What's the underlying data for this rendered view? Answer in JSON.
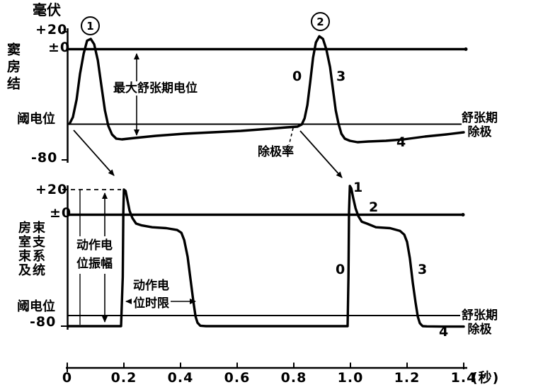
{
  "figure": {
    "y_unit": "毫伏",
    "x_unit": "(秒)",
    "x_ticks": [
      "0",
      "0.2",
      "0.4",
      "0.6",
      "0.8",
      "1.0",
      "1.2",
      "1.4"
    ]
  },
  "top_panel": {
    "trace_name": "窦房结",
    "y_plus20": "+20",
    "y_zero": "±0",
    "y_minus80": "-80",
    "threshold_label": "阈电位",
    "ap1_number": "1",
    "ap2_number": "2",
    "max_diastolic_label": "最大舒张期电位",
    "depol_rate_label": "除极率",
    "phase_0": "0",
    "phase_3": "3",
    "phase_4": "4",
    "diastolic_line1": "舒张期",
    "diastolic_line2": "除极"
  },
  "bottom_panel": {
    "trace_name_col1": "房室束及",
    "trace_name_col2": "束支系统",
    "y_plus20": "+20",
    "y_zero": "±0",
    "y_minus80": "-80",
    "threshold_label": "阈电位",
    "amplitude_line1": "动作电",
    "amplitude_line2": "位振幅",
    "duration_line1": "动作电",
    "duration_line2": "位时限",
    "phase_0": "0",
    "phase_1": "1",
    "phase_2": "2",
    "phase_3": "3",
    "phase_4": "4",
    "diastolic_line1": "舒张期",
    "diastolic_line2": "除极"
  },
  "chart_data": {
    "type": "line",
    "xlabel": "(秒)",
    "ylabel": "毫伏",
    "x_range": [
      0,
      1.4
    ],
    "y_tick_labels_mV": [
      20,
      0,
      -80
    ],
    "threshold_mV_approx": -55,
    "legend_position": "none",
    "grid": false,
    "series": [
      {
        "name": "窦房结",
        "points": [
          [
            0.008,
            -55
          ],
          [
            0.02,
            -50
          ],
          [
            0.033,
            -37
          ],
          [
            0.045,
            -18
          ],
          [
            0.058,
            -3
          ],
          [
            0.07,
            10
          ],
          [
            0.083,
            12
          ],
          [
            0.095,
            6
          ],
          [
            0.108,
            -8
          ],
          [
            0.12,
            -26
          ],
          [
            0.133,
            -45
          ],
          [
            0.145,
            -56.5
          ],
          [
            0.158,
            -62.5
          ],
          [
            0.173,
            -65.5
          ],
          [
            0.193,
            -66
          ],
          [
            0.238,
            -65
          ],
          [
            0.313,
            -63.5
          ],
          [
            0.413,
            -62
          ],
          [
            0.513,
            -61
          ],
          [
            0.613,
            -60
          ],
          [
            0.713,
            -58.5
          ],
          [
            0.775,
            -57.5
          ],
          [
            0.813,
            -57
          ],
          [
            0.828,
            -55.5
          ],
          [
            0.838,
            -51
          ],
          [
            0.848,
            -41
          ],
          [
            0.858,
            -24
          ],
          [
            0.868,
            -6
          ],
          [
            0.878,
            8
          ],
          [
            0.89,
            15
          ],
          [
            0.903,
            12
          ],
          [
            0.915,
            0
          ],
          [
            0.928,
            -13
          ],
          [
            0.938,
            -29
          ],
          [
            0.948,
            -45
          ],
          [
            0.958,
            -55
          ],
          [
            0.968,
            -62
          ],
          [
            0.98,
            -65.5
          ],
          [
            0.998,
            -67
          ],
          [
            1.025,
            -68
          ],
          [
            1.063,
            -67.5
          ],
          [
            1.125,
            -67
          ],
          [
            1.188,
            -66
          ],
          [
            1.263,
            -64
          ],
          [
            1.338,
            -62.5
          ],
          [
            1.4,
            -61
          ]
        ]
      },
      {
        "name": "房室束及束支系统",
        "points": [
          [
            0.005,
            -80
          ],
          [
            0.19,
            -80
          ],
          [
            0.196,
            -34
          ],
          [
            0.198,
            2
          ],
          [
            0.2,
            20
          ],
          [
            0.206,
            19
          ],
          [
            0.213,
            11
          ],
          [
            0.22,
            3
          ],
          [
            0.23,
            -2
          ],
          [
            0.243,
            -5
          ],
          [
            0.263,
            -6
          ],
          [
            0.3,
            -7
          ],
          [
            0.35,
            -7.5
          ],
          [
            0.388,
            -8.5
          ],
          [
            0.403,
            -10
          ],
          [
            0.413,
            -14
          ],
          [
            0.425,
            -23
          ],
          [
            0.435,
            -35
          ],
          [
            0.445,
            -47
          ],
          [
            0.453,
            -57
          ],
          [
            0.46,
            -72
          ],
          [
            0.47,
            -79
          ],
          [
            0.49,
            -80
          ],
          [
            0.7,
            -80
          ],
          [
            0.985,
            -80
          ],
          [
            0.99,
            -80
          ],
          [
            0.993,
            -34
          ],
          [
            0.995,
            2
          ],
          [
            0.998,
            23
          ],
          [
            1.003,
            21
          ],
          [
            1.01,
            13
          ],
          [
            1.018,
            5
          ],
          [
            1.028,
            -1
          ],
          [
            1.04,
            -4
          ],
          [
            1.058,
            -5
          ],
          [
            1.09,
            -7
          ],
          [
            1.14,
            -7.5
          ],
          [
            1.175,
            -9
          ],
          [
            1.19,
            -11
          ],
          [
            1.2,
            -15
          ],
          [
            1.21,
            -24
          ],
          [
            1.22,
            -37
          ],
          [
            1.23,
            -48
          ],
          [
            1.238,
            -58
          ],
          [
            1.245,
            -73
          ],
          [
            1.255,
            -80
          ],
          [
            1.27,
            -80.5
          ],
          [
            1.32,
            -81
          ],
          [
            1.4,
            -81
          ]
        ]
      }
    ]
  }
}
